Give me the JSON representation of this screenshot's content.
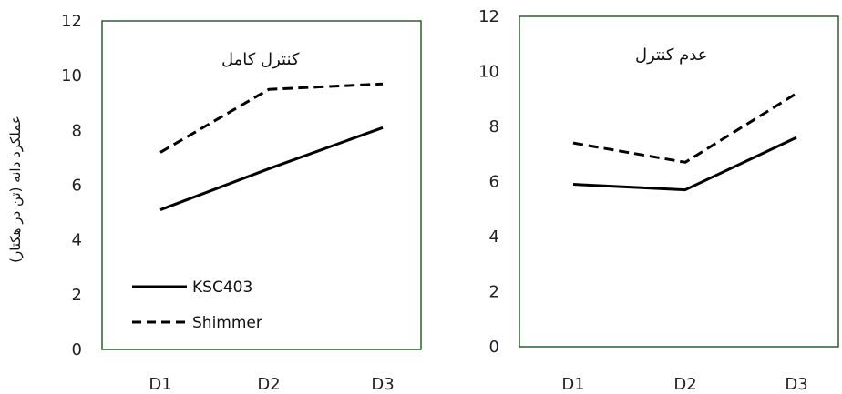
{
  "chart_data": [
    {
      "type": "line",
      "title": "کنترل کامل",
      "ylabel": "عملکرد دانه (تن در هکتار)",
      "categories": [
        "D1",
        "D2",
        "D3"
      ],
      "ylim": [
        0,
        12
      ],
      "yticks": [
        "0",
        "2",
        "4",
        "6",
        "8",
        "10",
        "12"
      ],
      "legend": "bottom-left",
      "series": [
        {
          "name": "KSC403",
          "style": "solid",
          "values": [
            5.1,
            6.6,
            8.1
          ]
        },
        {
          "name": "Shimmer",
          "style": "dashed",
          "values": [
            7.2,
            9.5,
            9.7
          ]
        }
      ]
    },
    {
      "type": "line",
      "title": "عدم کنترل",
      "categories": [
        "D1",
        "D2",
        "D3"
      ],
      "ylim": [
        0,
        12
      ],
      "yticks": [
        "0",
        "2",
        "4",
        "6",
        "8",
        "10",
        "12"
      ],
      "series": [
        {
          "style": "solid",
          "values": [
            5.9,
            5.7,
            7.6
          ]
        },
        {
          "style": "dashed",
          "values": [
            7.4,
            6.7,
            9.2
          ]
        }
      ]
    }
  ],
  "colors": {
    "line": "#000000",
    "frame": "#2e5e2e"
  }
}
